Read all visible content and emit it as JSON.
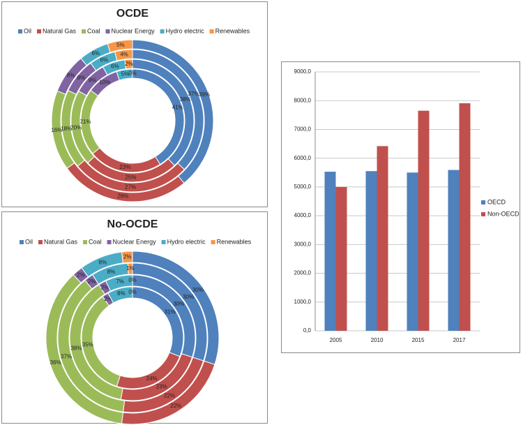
{
  "chart_data": [
    {
      "type": "doughnut",
      "title": "OCDE",
      "categories": [
        "Oil",
        "Natural Gas",
        "Coal",
        "Nuclear Energy",
        "Hydro electric",
        "Renewables"
      ],
      "colors": [
        "#4f81bd",
        "#c0504d",
        "#9bbb59",
        "#8064a2",
        "#4bacc6",
        "#f79646"
      ],
      "legend": "top",
      "rings": [
        {
          "values": [
            41,
            23,
            21,
            10,
            5,
            0
          ],
          "value_labels": [
            "41%",
            "23%",
            "21%",
            "10%",
            "5%",
            "0%"
          ]
        },
        {
          "values": [
            38,
            25,
            20,
            9,
            6,
            2
          ],
          "value_labels": [
            "38%",
            "25%",
            "20%",
            "9%",
            "6%",
            "2%"
          ]
        },
        {
          "values": [
            37,
            27,
            18,
            8,
            6,
            4
          ],
          "value_labels": [
            "37%",
            "27%",
            "18%",
            "8%",
            "6%",
            "4%"
          ]
        },
        {
          "values": [
            39,
            26,
            16,
            8,
            6,
            5
          ],
          "value_labels": [
            "39%",
            "26%",
            "16%",
            "8%",
            "6%",
            "5%"
          ]
        }
      ]
    },
    {
      "type": "doughnut",
      "title": "No-OCDE",
      "categories": [
        "Oil",
        "Natural Gas",
        "Coal",
        "Nuclear Energy",
        "Hydro electric",
        "Renewables"
      ],
      "colors": [
        "#4f81bd",
        "#c0504d",
        "#9bbb59",
        "#8064a2",
        "#4bacc6",
        "#f79646"
      ],
      "legend": "top",
      "rings": [
        {
          "values": [
            31,
            24,
            35,
            2,
            8,
            0
          ],
          "value_labels": [
            "31%",
            "24%",
            "35%",
            "2%",
            "8%",
            "0%"
          ]
        },
        {
          "values": [
            30,
            23,
            38,
            2,
            7,
            0
          ],
          "value_labels": [
            "30%",
            "23%",
            "38%",
            "2%",
            "7%",
            "0%"
          ]
        },
        {
          "values": [
            30,
            22,
            37,
            2,
            8,
            1
          ],
          "value_labels": [
            "30%",
            "22%",
            "37%",
            "2%",
            "8%",
            "1%"
          ]
        },
        {
          "values": [
            30,
            22,
            36,
            2,
            8,
            2
          ],
          "value_labels": [
            "30%",
            "22%",
            "36%",
            "2%",
            "8%",
            "2%"
          ]
        }
      ]
    },
    {
      "type": "bar",
      "categories": [
        "2005",
        "2010",
        "2015",
        "2017"
      ],
      "series": [
        {
          "name": "OECD",
          "color": "#4f81bd",
          "values": [
            5530,
            5550,
            5500,
            5590
          ]
        },
        {
          "name": "Non-OECD",
          "color": "#c0504d",
          "values": [
            5000,
            6420,
            7650,
            7910
          ]
        }
      ],
      "ylim": [
        0,
        9000
      ],
      "yticks": [
        {
          "value": 0,
          "label": "0,0"
        },
        {
          "value": 1000,
          "label": "1000,0"
        },
        {
          "value": 2000,
          "label": "2000,0"
        },
        {
          "value": 3000,
          "label": "3000,0"
        },
        {
          "value": 4000,
          "label": "4000,0"
        },
        {
          "value": 5000,
          "label": "5000,0"
        },
        {
          "value": 6000,
          "label": "6000,0"
        },
        {
          "value": 7000,
          "label": "7000,0"
        },
        {
          "value": 8000,
          "label": "8000,0"
        },
        {
          "value": 9000,
          "label": "9000,0"
        }
      ],
      "grid": true,
      "legend": "right"
    }
  ]
}
